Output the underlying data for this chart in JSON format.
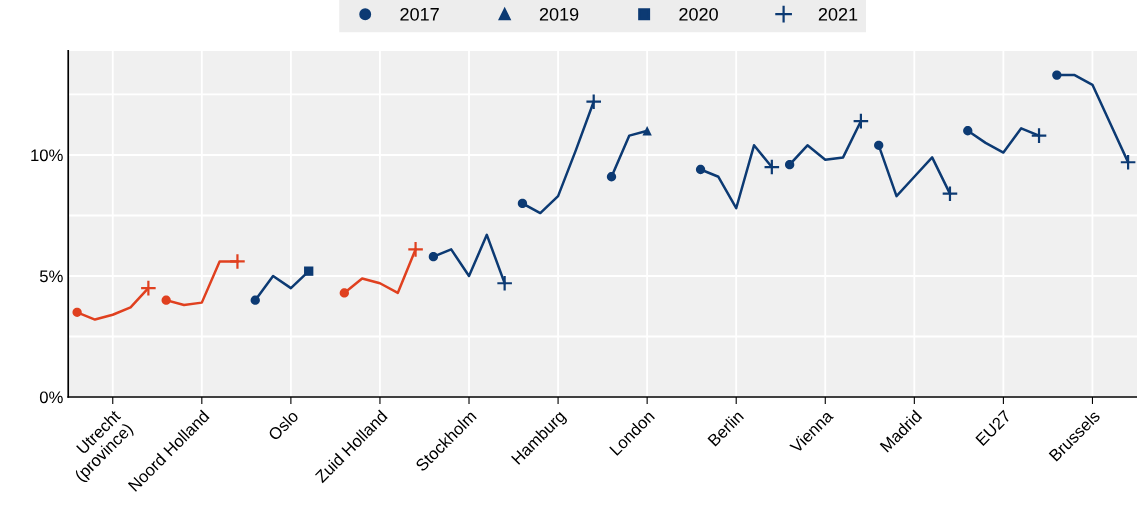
{
  "chart_data": {
    "type": "line",
    "categories": [
      null,
      null,
      "Utrecht\n(province)",
      null,
      null,
      null,
      null,
      "Noord Holland",
      null,
      null,
      null,
      null,
      "Oslo",
      null,
      null,
      null,
      null,
      "Zuid Holland",
      null,
      null,
      null,
      null,
      "Stockholm",
      null,
      null,
      null,
      null,
      "Hamburg",
      null,
      null,
      null,
      null,
      "London",
      null,
      null,
      null,
      null,
      "Berlin",
      null,
      null,
      null,
      null,
      "Vienna",
      null,
      null,
      null,
      null,
      "Madrid",
      null,
      null,
      null,
      null,
      "EU27",
      null,
      null,
      null,
      null,
      "Brussels",
      null,
      null
    ],
    "ylim": [
      0,
      14.3
    ],
    "yticks": [
      {
        "value": 0,
        "label": "0%"
      },
      {
        "value": 2.5,
        "label": null
      },
      {
        "value": 5,
        "label": "5%"
      },
      {
        "value": 7.5,
        "label": null
      },
      {
        "value": 10,
        "label": "10%"
      },
      {
        "value": 12.5,
        "label": null
      }
    ],
    "grid": true,
    "legend": "top",
    "line_style": "solid",
    "series": [
      {
        "color": "#e0401f",
        "marker": "none",
        "values": [
          3.5,
          3.2,
          3.4,
          3.7,
          4.5,
          null,
          null,
          null,
          null,
          null,
          null,
          null,
          null,
          null,
          null,
          null,
          null,
          null,
          null,
          null,
          null,
          null,
          null,
          null,
          null,
          null,
          null,
          null,
          null,
          null,
          null,
          null,
          null,
          null,
          null,
          null,
          null,
          null,
          null,
          null,
          null,
          null,
          null,
          null,
          null,
          null,
          null,
          null,
          null,
          null,
          null,
          null,
          null,
          null,
          null,
          null,
          null,
          null,
          null,
          null
        ]
      },
      {
        "color": "#e0401f",
        "marker": "none",
        "values": [
          null,
          null,
          null,
          null,
          null,
          4.0,
          3.8,
          3.9,
          5.6,
          5.6,
          null,
          null,
          null,
          null,
          null,
          null,
          null,
          null,
          null,
          null,
          null,
          null,
          null,
          null,
          null,
          null,
          null,
          null,
          null,
          null,
          null,
          null,
          null,
          null,
          null,
          null,
          null,
          null,
          null,
          null,
          null,
          null,
          null,
          null,
          null,
          null,
          null,
          null,
          null,
          null,
          null,
          null,
          null,
          null,
          null,
          null,
          null,
          null,
          null,
          null
        ]
      },
      {
        "color": "#0c3a73",
        "marker": "none",
        "values": [
          null,
          null,
          null,
          null,
          null,
          null,
          null,
          null,
          null,
          null,
          4.0,
          5.0,
          4.5,
          5.2,
          null,
          null,
          null,
          null,
          null,
          null,
          null,
          null,
          null,
          null,
          null,
          null,
          null,
          null,
          null,
          null,
          null,
          null,
          null,
          null,
          null,
          null,
          null,
          null,
          null,
          null,
          null,
          null,
          null,
          null,
          null,
          null,
          null,
          null,
          null,
          null,
          null,
          null,
          null,
          null,
          null,
          null,
          null,
          null,
          null,
          null
        ]
      },
      {
        "color": "#e0401f",
        "marker": "none",
        "values": [
          null,
          null,
          null,
          null,
          null,
          null,
          null,
          null,
          null,
          null,
          null,
          null,
          null,
          null,
          null,
          4.3,
          4.9,
          4.7,
          4.3,
          6.1,
          null,
          null,
          null,
          null,
          null,
          null,
          null,
          null,
          null,
          null,
          null,
          null,
          null,
          null,
          null,
          null,
          null,
          null,
          null,
          null,
          null,
          null,
          null,
          null,
          null,
          null,
          null,
          null,
          null,
          null,
          null,
          null,
          null,
          null,
          null,
          null,
          null,
          null,
          null,
          null
        ]
      },
      {
        "color": "#0c3a73",
        "marker": "none",
        "values": [
          null,
          null,
          null,
          null,
          null,
          null,
          null,
          null,
          null,
          null,
          null,
          null,
          null,
          null,
          null,
          null,
          null,
          null,
          null,
          null,
          5.8,
          6.1,
          5.0,
          6.7,
          4.7,
          null,
          null,
          null,
          null,
          null,
          null,
          null,
          null,
          null,
          null,
          null,
          null,
          null,
          null,
          null,
          null,
          null,
          null,
          null,
          null,
          null,
          null,
          null,
          null,
          null,
          null,
          null,
          null,
          null,
          null,
          null,
          null,
          null,
          null,
          null
        ]
      },
      {
        "color": "#0c3a73",
        "marker": "none",
        "values": [
          null,
          null,
          null,
          null,
          null,
          null,
          null,
          null,
          null,
          null,
          null,
          null,
          null,
          null,
          null,
          null,
          null,
          null,
          null,
          null,
          null,
          null,
          null,
          null,
          null,
          8.0,
          7.6,
          8.3,
          10.2,
          12.2,
          null,
          null,
          null,
          null,
          null,
          null,
          null,
          null,
          null,
          null,
          null,
          null,
          null,
          null,
          null,
          null,
          null,
          null,
          null,
          null,
          null,
          null,
          null,
          null,
          null,
          null,
          null,
          null,
          null,
          null
        ]
      },
      {
        "color": "#0c3a73",
        "marker": "none",
        "values": [
          null,
          null,
          null,
          null,
          null,
          null,
          null,
          null,
          null,
          null,
          null,
          null,
          null,
          null,
          null,
          null,
          null,
          null,
          null,
          null,
          null,
          null,
          null,
          null,
          null,
          null,
          null,
          null,
          null,
          null,
          9.1,
          10.8,
          11.0,
          null,
          null,
          null,
          null,
          null,
          null,
          null,
          null,
          null,
          null,
          null,
          null,
          null,
          null,
          null,
          null,
          null,
          null,
          null,
          null,
          null,
          null,
          null,
          null,
          null,
          null,
          null
        ]
      },
      {
        "color": "#0c3a73",
        "marker": "none",
        "values": [
          null,
          null,
          null,
          null,
          null,
          null,
          null,
          null,
          null,
          null,
          null,
          null,
          null,
          null,
          null,
          null,
          null,
          null,
          null,
          null,
          null,
          null,
          null,
          null,
          null,
          null,
          null,
          null,
          null,
          null,
          null,
          null,
          null,
          null,
          null,
          9.4,
          9.1,
          7.8,
          10.4,
          9.5,
          null,
          null,
          null,
          null,
          null,
          null,
          null,
          null,
          null,
          null,
          null,
          null,
          null,
          null,
          null,
          null,
          null,
          null,
          null,
          null
        ]
      },
      {
        "color": "#0c3a73",
        "marker": "none",
        "values": [
          null,
          null,
          null,
          null,
          null,
          null,
          null,
          null,
          null,
          null,
          null,
          null,
          null,
          null,
          null,
          null,
          null,
          null,
          null,
          null,
          null,
          null,
          null,
          null,
          null,
          null,
          null,
          null,
          null,
          null,
          null,
          null,
          null,
          null,
          null,
          null,
          null,
          null,
          null,
          null,
          9.6,
          10.4,
          9.8,
          9.9,
          11.4,
          null,
          null,
          null,
          null,
          null,
          null,
          null,
          null,
          null,
          null,
          null,
          null,
          null,
          null,
          null
        ]
      },
      {
        "color": "#0c3a73",
        "marker": "none",
        "values": [
          null,
          null,
          null,
          null,
          null,
          null,
          null,
          null,
          null,
          null,
          null,
          null,
          null,
          null,
          null,
          null,
          null,
          null,
          null,
          null,
          null,
          null,
          null,
          null,
          null,
          null,
          null,
          null,
          null,
          null,
          null,
          null,
          null,
          null,
          null,
          null,
          null,
          null,
          null,
          null,
          null,
          null,
          null,
          null,
          null,
          10.4,
          8.3,
          9.1,
          9.9,
          8.4,
          null,
          null,
          null,
          null,
          null,
          null,
          null,
          null,
          null,
          null
        ]
      },
      {
        "color": "#0c3a73",
        "marker": "none",
        "values": [
          null,
          null,
          null,
          null,
          null,
          null,
          null,
          null,
          null,
          null,
          null,
          null,
          null,
          null,
          null,
          null,
          null,
          null,
          null,
          null,
          null,
          null,
          null,
          null,
          null,
          null,
          null,
          null,
          null,
          null,
          null,
          null,
          null,
          null,
          null,
          null,
          null,
          null,
          null,
          null,
          null,
          null,
          null,
          null,
          null,
          null,
          null,
          null,
          null,
          null,
          11.0,
          10.5,
          10.1,
          11.1,
          10.8,
          null,
          null,
          null,
          null,
          null
        ]
      },
      {
        "color": "#0c3a73",
        "marker": "none",
        "values": [
          null,
          null,
          null,
          null,
          null,
          null,
          null,
          null,
          null,
          null,
          null,
          null,
          null,
          null,
          null,
          null,
          null,
          null,
          null,
          null,
          null,
          null,
          null,
          null,
          null,
          null,
          null,
          null,
          null,
          null,
          null,
          null,
          null,
          null,
          null,
          null,
          null,
          null,
          null,
          null,
          null,
          null,
          null,
          null,
          null,
          null,
          null,
          null,
          null,
          null,
          null,
          null,
          null,
          null,
          null,
          13.3,
          13.3,
          12.9,
          11.3,
          9.7
        ]
      },
      {
        "name": "2017",
        "type": "scatter",
        "marker": "circle",
        "color": "#0c3a73",
        "values": [
          3.5,
          null,
          null,
          null,
          null,
          4.0,
          null,
          null,
          null,
          null,
          4.0,
          null,
          null,
          null,
          null,
          4.3,
          null,
          null,
          null,
          null,
          5.8,
          null,
          null,
          null,
          null,
          8.0,
          null,
          null,
          null,
          null,
          9.1,
          null,
          null,
          null,
          null,
          9.4,
          null,
          null,
          null,
          null,
          9.6,
          null,
          null,
          null,
          null,
          10.4,
          null,
          null,
          null,
          null,
          11.0,
          null,
          null,
          null,
          null,
          13.3,
          null,
          null,
          null,
          null
        ],
        "colors": [
          "#e0401f",
          null,
          null,
          null,
          null,
          "#e0401f",
          null,
          null,
          null,
          null,
          "#0c3a73",
          null,
          null,
          null,
          null,
          "#e0401f",
          null,
          null,
          null,
          null,
          "#0c3a73",
          null,
          null,
          null,
          null,
          "#0c3a73",
          null,
          null,
          null,
          null,
          "#0c3a73",
          null,
          null,
          null,
          null,
          "#0c3a73",
          null,
          null,
          null,
          null,
          "#0c3a73",
          null,
          null,
          null,
          null,
          "#0c3a73",
          null,
          null,
          null,
          null,
          "#0c3a73",
          null,
          null,
          null,
          null,
          "#0c3a73",
          null,
          null,
          null,
          null
        ]
      },
      {
        "name": "2019",
        "type": "scatter",
        "marker": "triangle",
        "color": "#0c3a73",
        "values": [
          null,
          null,
          null,
          null,
          null,
          null,
          null,
          null,
          null,
          null,
          null,
          null,
          null,
          null,
          null,
          null,
          null,
          null,
          null,
          null,
          null,
          null,
          null,
          null,
          null,
          null,
          null,
          null,
          null,
          null,
          null,
          null,
          11.0,
          null,
          null,
          null,
          null,
          null,
          null,
          null,
          null,
          null,
          null,
          null,
          null,
          null,
          null,
          null,
          null,
          null,
          null,
          null,
          null,
          null,
          null,
          null,
          null,
          null,
          null,
          null
        ],
        "colors": [
          null,
          null,
          null,
          null,
          null,
          null,
          null,
          null,
          null,
          null,
          null,
          null,
          null,
          null,
          null,
          null,
          null,
          null,
          null,
          null,
          null,
          null,
          null,
          null,
          null,
          null,
          null,
          null,
          null,
          null,
          null,
          null,
          "#0c3a73",
          null,
          null,
          null,
          null,
          null,
          null,
          null,
          null,
          null,
          null,
          null,
          null,
          null,
          null,
          null,
          null,
          null,
          null,
          null,
          null,
          null,
          null,
          null,
          null,
          null,
          null,
          null
        ]
      },
      {
        "name": "2020",
        "type": "scatter",
        "marker": "square",
        "color": "#0c3a73",
        "values": [
          null,
          null,
          null,
          null,
          null,
          null,
          null,
          null,
          null,
          null,
          null,
          null,
          null,
          5.2,
          null,
          null,
          null,
          null,
          null,
          null,
          null,
          null,
          null,
          null,
          null,
          null,
          null,
          null,
          null,
          null,
          null,
          null,
          null,
          null,
          null,
          null,
          null,
          null,
          null,
          null,
          null,
          null,
          null,
          null,
          null,
          null,
          null,
          null,
          null,
          null,
          null,
          null,
          null,
          null,
          null,
          null,
          null,
          null,
          null,
          null
        ],
        "colors": [
          null,
          null,
          null,
          null,
          null,
          null,
          null,
          null,
          null,
          null,
          null,
          null,
          null,
          "#0c3a73",
          null,
          null,
          null,
          null,
          null,
          null,
          null,
          null,
          null,
          null,
          null,
          null,
          null,
          null,
          null,
          null,
          null,
          null,
          null,
          null,
          null,
          null,
          null,
          null,
          null,
          null,
          null,
          null,
          null,
          null,
          null,
          null,
          null,
          null,
          null,
          null,
          null,
          null,
          null,
          null,
          null,
          null,
          null,
          null,
          null,
          null
        ]
      },
      {
        "name": "2021",
        "type": "scatter",
        "marker": "cross",
        "color": "#0c3a73",
        "values": [
          null,
          null,
          null,
          null,
          4.5,
          null,
          null,
          null,
          null,
          5.6,
          null,
          null,
          null,
          null,
          null,
          null,
          null,
          null,
          null,
          6.1,
          null,
          null,
          null,
          null,
          4.7,
          null,
          null,
          null,
          null,
          12.2,
          null,
          null,
          null,
          null,
          null,
          null,
          null,
          null,
          null,
          9.5,
          null,
          null,
          null,
          null,
          11.4,
          null,
          null,
          null,
          null,
          8.4,
          null,
          null,
          null,
          null,
          10.8,
          null,
          null,
          null,
          null,
          9.7
        ],
        "colors": [
          null,
          null,
          null,
          null,
          "#e0401f",
          null,
          null,
          null,
          null,
          "#e0401f",
          null,
          null,
          null,
          null,
          null,
          null,
          null,
          null,
          null,
          "#e0401f",
          null,
          null,
          null,
          null,
          "#0c3a73",
          null,
          null,
          null,
          null,
          "#0c3a73",
          null,
          null,
          null,
          null,
          null,
          null,
          null,
          null,
          null,
          "#0c3a73",
          null,
          null,
          null,
          null,
          "#0c3a73",
          null,
          null,
          null,
          null,
          "#0c3a73",
          null,
          null,
          null,
          null,
          "#0c3a73",
          null,
          null,
          null,
          null,
          "#0c3a73"
        ]
      }
    ]
  }
}
